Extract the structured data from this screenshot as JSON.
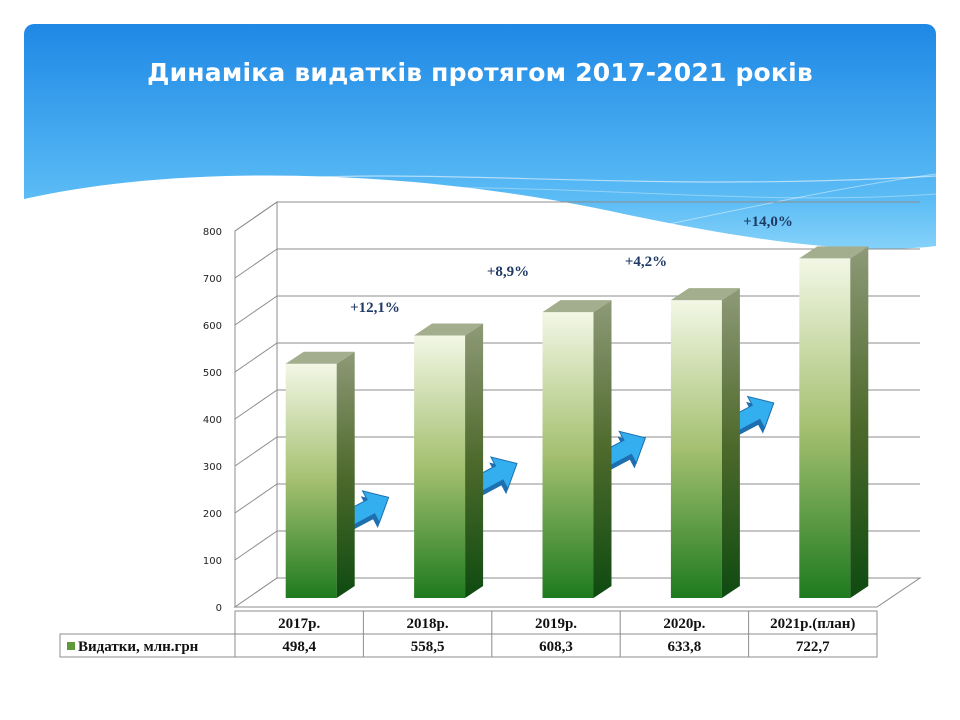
{
  "title": "Динаміка видатків протягом 2017-2021 років",
  "colors": {
    "banner_top": "#1E88E5",
    "banner_bottom": "#7FD0F8",
    "bar_light": "#F3F7E6",
    "bar_mid": "#A4C070",
    "bar_dark": "#1E7A1E",
    "arrow_fill": "#33AEEE",
    "arrow_edge": "#1E6FB0",
    "growth_label": "#1F3A64",
    "grid": "#8C8C8C"
  },
  "chart_data": {
    "type": "bar",
    "categories": [
      "2017р.",
      "2018р.",
      "2019р.",
      "2020р.",
      "2021р.(план)"
    ],
    "series": [
      {
        "name": "Видатки, млн.грн",
        "values": [
          498.4,
          558.5,
          608.3,
          633.8,
          722.7
        ]
      }
    ],
    "value_labels": [
      "498,4",
      "558,5",
      "608,3",
      "633,8",
      "722,7"
    ],
    "growth_labels": [
      "+12,1%",
      "+8,9%",
      "+4,2%",
      "+14,0%"
    ],
    "y_ticks": [
      "0",
      "100",
      "200",
      "300",
      "400",
      "500",
      "600",
      "700",
      "800"
    ],
    "ylim": [
      0,
      800
    ],
    "grid": true,
    "legend": "data-table",
    "three_d": true
  }
}
